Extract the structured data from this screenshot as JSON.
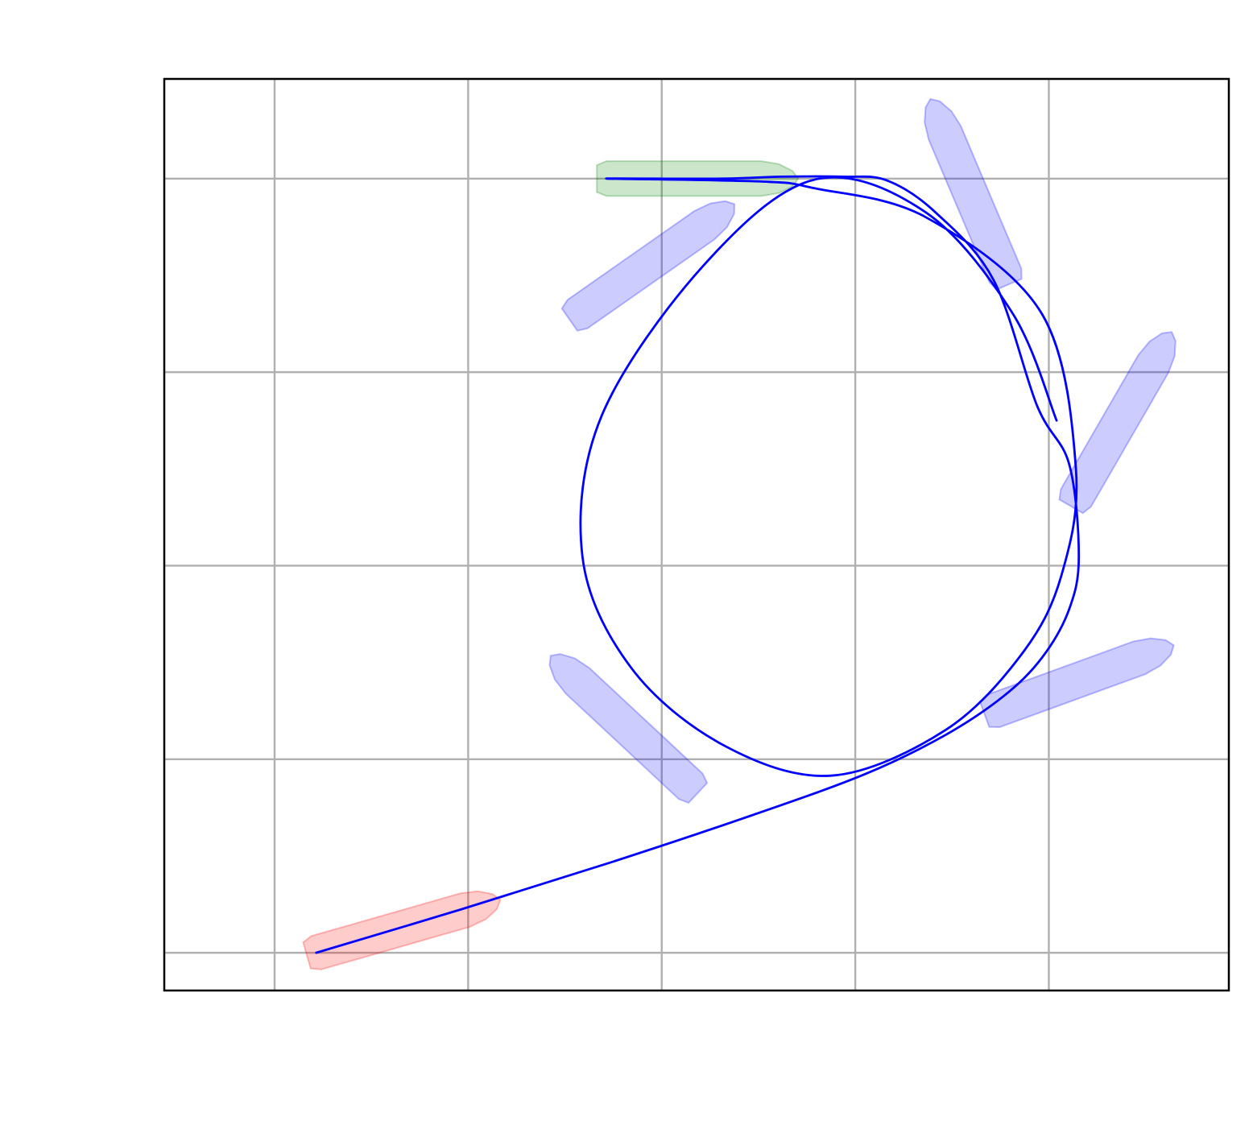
{
  "chart_data": {
    "type": "line",
    "title": "",
    "xlabel": "",
    "ylabel": "",
    "xlim": [
      -1.57,
      9.43
    ],
    "ylim": [
      -0.39,
      9.03
    ],
    "grid": true,
    "x_gridlines": [
      -0.43,
      1.57,
      3.57,
      5.57,
      7.57
    ],
    "y_gridlines": [
      0.0,
      2.0,
      4.0,
      6.0,
      8.0
    ],
    "tick_labels_visible": false,
    "trajectory": {
      "color": "#0000ff",
      "points": [
        [
          0.0,
          0.0
        ],
        [
          1.5,
          0.45
        ],
        [
          3.0,
          0.92
        ],
        [
          4.5,
          1.42
        ],
        [
          5.68,
          1.85
        ],
        [
          6.5,
          2.25
        ],
        [
          7.1,
          2.65
        ],
        [
          7.5,
          3.05
        ],
        [
          7.78,
          3.55
        ],
        [
          7.88,
          4.1
        ],
        [
          7.78,
          5.05
        ],
        [
          7.45,
          5.65
        ],
        [
          7.0,
          6.95
        ],
        [
          6.4,
          7.65
        ],
        [
          5.9,
          7.98
        ],
        [
          5.45,
          8.02
        ],
        [
          4.8,
          8.02
        ],
        [
          4.2,
          8.0
        ],
        [
          3.0,
          8.0
        ],
        [
          4.6,
          7.97
        ],
        [
          5.15,
          7.9
        ],
        [
          6.3,
          7.6
        ],
        [
          7.5,
          6.6
        ],
        [
          7.85,
          5.0
        ],
        [
          7.7,
          3.9
        ],
        [
          7.3,
          3.1
        ],
        [
          6.5,
          2.3
        ],
        [
          5.32,
          1.83
        ],
        [
          4.2,
          2.15
        ],
        [
          3.25,
          2.95
        ],
        [
          2.75,
          4.1
        ],
        [
          2.95,
          5.55
        ],
        [
          4.0,
          7.1
        ],
        [
          5.15,
          7.99
        ],
        [
          6.3,
          7.65
        ],
        [
          7.2,
          6.6
        ],
        [
          7.65,
          5.5
        ]
      ]
    },
    "ship_poses": [
      {
        "role": "start",
        "x": 0.0,
        "y": 0.0,
        "heading_deg": 16,
        "color": "#ff0000"
      },
      {
        "role": "intermediate",
        "x": 3.87,
        "y": 1.72,
        "heading_deg": 137,
        "color": "#0000ff"
      },
      {
        "role": "intermediate",
        "x": 7.0,
        "y": 2.5,
        "heading_deg": 20,
        "color": "#0000ff"
      },
      {
        "role": "intermediate",
        "x": 7.85,
        "y": 4.7,
        "heading_deg": 60,
        "color": "#0000ff"
      },
      {
        "role": "intermediate",
        "x": 7.12,
        "y": 7.0,
        "heading_deg": 113,
        "color": "#0000ff"
      },
      {
        "role": "intermediate",
        "x": 2.7,
        "y": 6.6,
        "heading_deg": 35,
        "color": "#0000ff"
      },
      {
        "role": "goal",
        "x": 3.0,
        "y": 8.0,
        "heading_deg": 0,
        "color": "#008000"
      }
    ]
  }
}
